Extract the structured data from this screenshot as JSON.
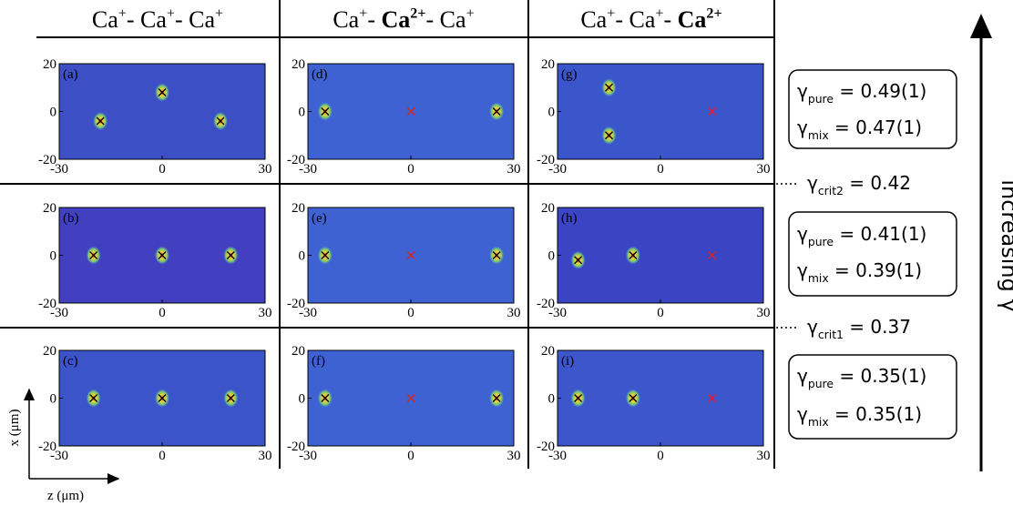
{
  "columns": [
    [
      {
        "text": "Ca"
      },
      {
        "text": "+",
        "style": "sup"
      },
      {
        "text": "- Ca"
      },
      {
        "text": "+",
        "style": "sup"
      },
      {
        "text": "- Ca"
      },
      {
        "text": "+",
        "style": "sup"
      }
    ],
    [
      {
        "text": "Ca"
      },
      {
        "text": "+",
        "style": "sup"
      },
      {
        "text": "- "
      },
      {
        "text": "Ca",
        "style": "bold"
      },
      {
        "text": "2+",
        "style": "bold-sup"
      },
      {
        "text": "- Ca"
      },
      {
        "text": "+",
        "style": "sup"
      }
    ],
    [
      {
        "text": "Ca"
      },
      {
        "text": "+",
        "style": "sup"
      },
      {
        "text": "- Ca"
      },
      {
        "text": "+",
        "style": "sup"
      },
      {
        "text": "- "
      },
      {
        "text": "Ca",
        "style": "bold"
      },
      {
        "text": "2+",
        "style": "bold-sup"
      }
    ]
  ],
  "axes": {
    "xlim": [
      -30,
      30
    ],
    "ylim": [
      -20,
      20
    ],
    "xticks": [
      -30,
      0,
      30
    ],
    "yticks": [
      20,
      0,
      -20
    ],
    "xlabel": "z (μm)",
    "ylabel": "x (μm)"
  },
  "panels": [
    {
      "label": "(a)",
      "ions": [
        {
          "z": -18,
          "x": -4,
          "signal": true
        },
        {
          "z": 0,
          "x": 8,
          "signal": true
        },
        {
          "z": 17,
          "x": -4,
          "signal": true
        }
      ]
    },
    {
      "label": "(d)",
      "ions": [
        {
          "z": -25,
          "x": 0,
          "signal": true
        },
        {
          "z": 0,
          "x": 0,
          "signal": false
        },
        {
          "z": 25,
          "x": 0,
          "signal": true
        }
      ]
    },
    {
      "label": "(g)",
      "ions": [
        {
          "z": -15,
          "x": 10,
          "signal": true
        },
        {
          "z": -15,
          "x": -10,
          "signal": true
        },
        {
          "z": 15,
          "x": 0,
          "signal": false
        }
      ]
    },
    {
      "label": "(b)",
      "ions": [
        {
          "z": -20,
          "x": 0,
          "signal": true
        },
        {
          "z": 0,
          "x": 0,
          "signal": true
        },
        {
          "z": 20,
          "x": 0,
          "signal": true
        }
      ]
    },
    {
      "label": "(e)",
      "ions": [
        {
          "z": -25,
          "x": 0,
          "signal": true
        },
        {
          "z": 0,
          "x": 0,
          "signal": false
        },
        {
          "z": 25,
          "x": 0,
          "signal": true
        }
      ]
    },
    {
      "label": "(h)",
      "ions": [
        {
          "z": -24,
          "x": -2,
          "signal": true
        },
        {
          "z": -8,
          "x": 0,
          "signal": true
        },
        {
          "z": 15,
          "x": 0,
          "signal": false
        }
      ]
    },
    {
      "label": "(c)",
      "ions": [
        {
          "z": -20,
          "x": 0,
          "signal": true
        },
        {
          "z": 0,
          "x": 0,
          "signal": true
        },
        {
          "z": 20,
          "x": 0,
          "signal": true
        }
      ]
    },
    {
      "label": "(f)",
      "ions": [
        {
          "z": -25,
          "x": 0,
          "signal": true
        },
        {
          "z": 0,
          "x": 0,
          "signal": false
        },
        {
          "z": 25,
          "x": 0,
          "signal": true
        }
      ]
    },
    {
      "label": "(i)",
      "ions": [
        {
          "z": -24,
          "x": 0,
          "signal": true
        },
        {
          "z": -8,
          "x": 0,
          "signal": true
        },
        {
          "z": 15,
          "x": 0,
          "signal": false
        }
      ]
    }
  ],
  "boxes": [
    [
      [
        {
          "text": "γ"
        },
        {
          "text": "pure",
          "style": "sub"
        },
        {
          "text": " = 0.49(1)"
        }
      ],
      [
        {
          "text": "γ"
        },
        {
          "text": "mix",
          "style": "sub"
        },
        {
          "text": " = 0.47(1)"
        }
      ]
    ],
    [
      [
        {
          "text": "γ"
        },
        {
          "text": "pure",
          "style": "sub"
        },
        {
          "text": " = 0.41(1)"
        }
      ],
      [
        {
          "text": "γ"
        },
        {
          "text": "mix",
          "style": "sub"
        },
        {
          "text": " = 0.39(1)"
        }
      ]
    ],
    [
      [
        {
          "text": "γ"
        },
        {
          "text": "pure",
          "style": "sub"
        },
        {
          "text": " = 0.35(1)"
        }
      ],
      [
        {
          "text": "γ"
        },
        {
          "text": "mix",
          "style": "sub"
        },
        {
          "text": " = 0.35(1)"
        }
      ]
    ]
  ],
  "thresholds": [
    [
      {
        "text": "γ"
      },
      {
        "text": "crit2",
        "style": "sub"
      },
      {
        "text": " = 0.42"
      }
    ],
    [
      {
        "text": "γ"
      },
      {
        "text": "crit1",
        "style": "sub"
      },
      {
        "text": " = 0.37"
      }
    ]
  ],
  "arrow_label": "increasing γ"
}
